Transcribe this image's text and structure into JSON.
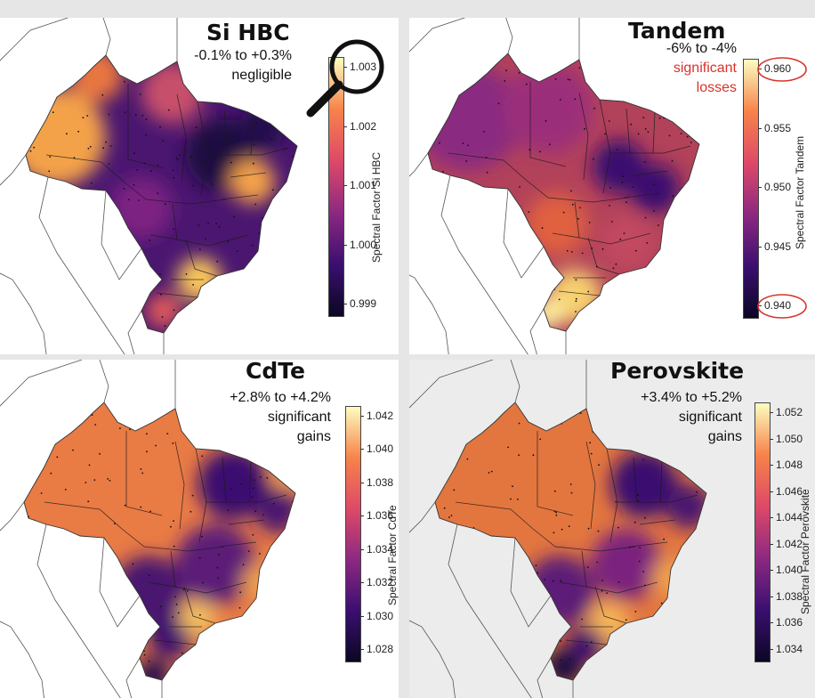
{
  "panels": [
    {
      "title": "Si HBC",
      "range": "-0.1% to +0.3%",
      "note": [
        "negligible"
      ],
      "note_color": "#111111",
      "colorbar_label": "Spectral Factor Si HBC",
      "ticks": [
        "1.003",
        "1.002",
        "1.001",
        "1.000",
        "0.999"
      ],
      "highlighted_ticks": [
        "1.003"
      ],
      "highlight_style": "magnifier",
      "icons": [
        "magnifying-glass-icon"
      ]
    },
    {
      "title": "Tandem",
      "range": "-6% to -4%",
      "note": [
        "significant",
        "losses"
      ],
      "note_color": "#d8332b",
      "colorbar_label": "Spectral Factor Tandem",
      "ticks": [
        "0.960",
        "0.955",
        "0.950",
        "0.945",
        "0.940"
      ],
      "highlighted_ticks": [
        "0.960",
        "0.940"
      ],
      "highlight_style": "red-circle"
    },
    {
      "title": "CdTe",
      "range": "+2.8% to +4.2%",
      "note": [
        "significant",
        "gains"
      ],
      "note_color": "#111111",
      "colorbar_label": "Spectral Factor CdTe",
      "ticks": [
        "1.042",
        "1.040",
        "1.038",
        "1.036",
        "1.034",
        "1.032",
        "1.030",
        "1.028"
      ],
      "highlighted_ticks": []
    },
    {
      "title": "Perovskite",
      "range": "+3.4% to +5.2%",
      "note": [
        "significant",
        "gains"
      ],
      "note_color": "#111111",
      "colorbar_label": "Spectral Factor Perovskite",
      "ticks": [
        "1.052",
        "1.050",
        "1.048",
        "1.046",
        "1.044",
        "1.042",
        "1.040",
        "1.038",
        "1.036",
        "1.034"
      ],
      "highlighted_ticks": []
    }
  ],
  "colormap": "inferno",
  "colormap_stops": [
    "#0b0724",
    "#3b0f70",
    "#8c2981",
    "#de4968",
    "#f7834a",
    "#fcfdbf"
  ]
}
